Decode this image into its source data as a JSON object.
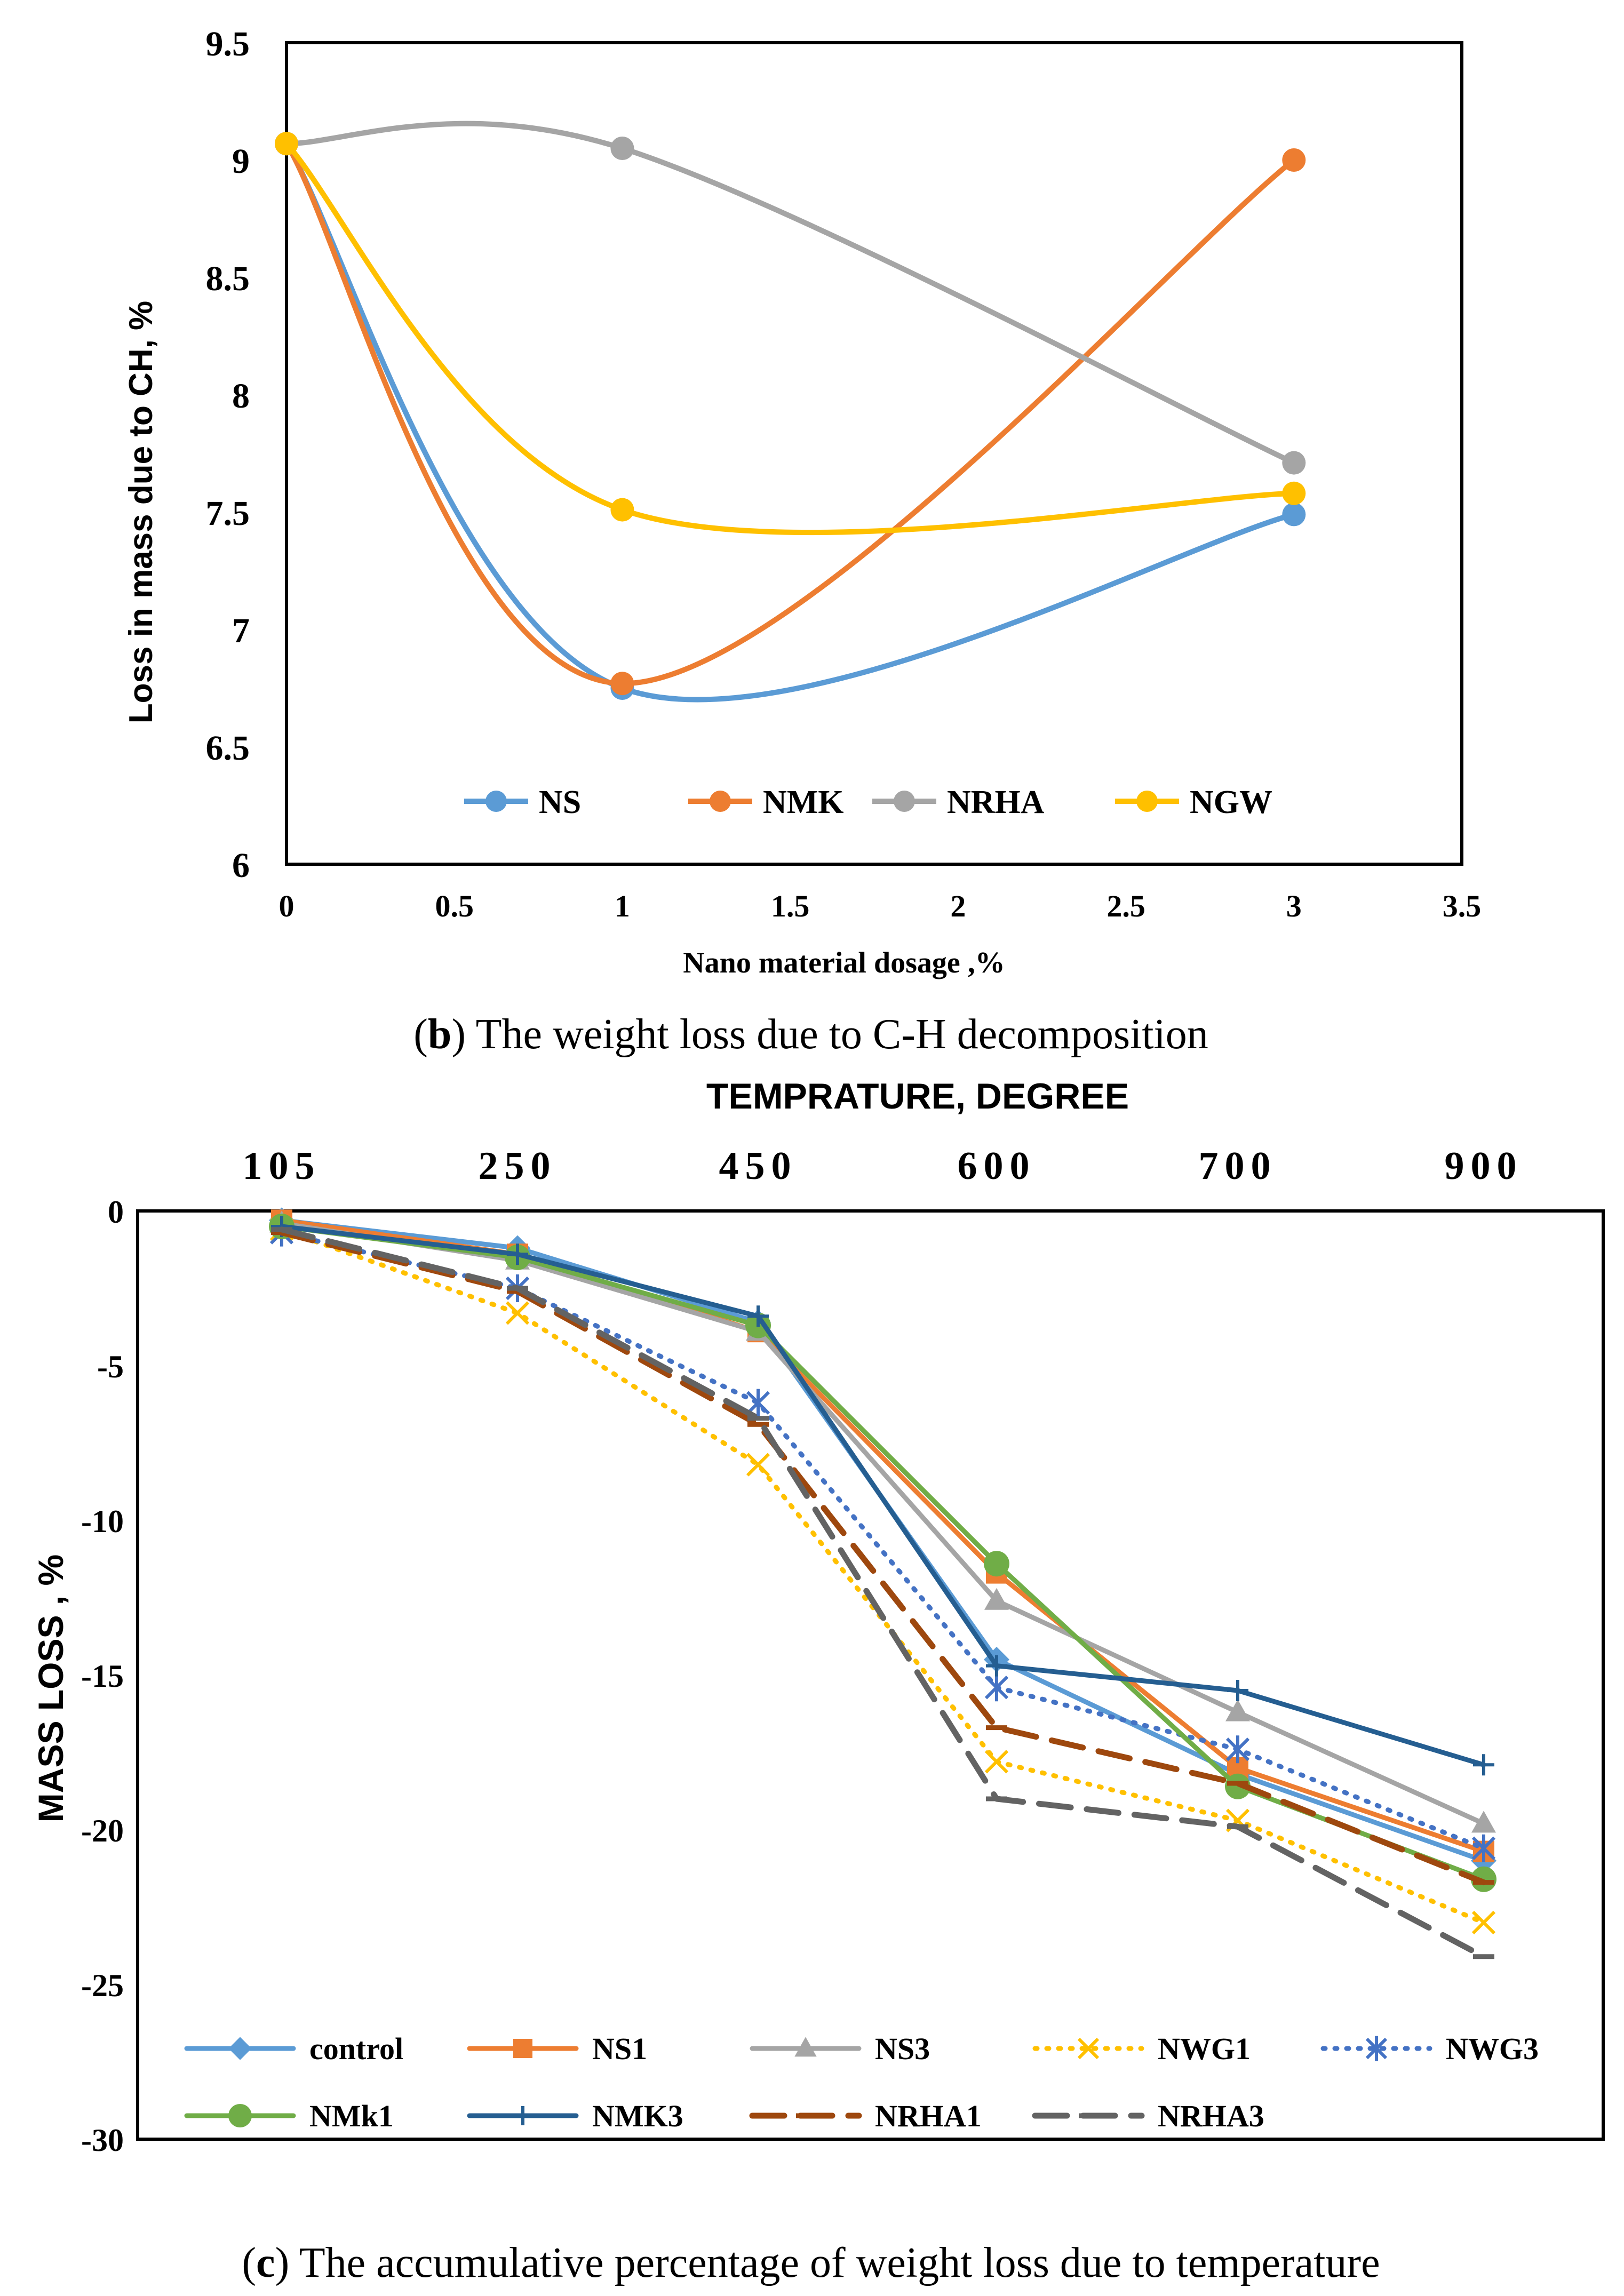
{
  "chart_data": [
    {
      "type": "line",
      "title": "",
      "xlabel": "Nano material dosage ,%",
      "ylabel": "Loss in mass due to CH, %",
      "xlim": [
        0,
        3.5
      ],
      "ylim": [
        6,
        9.5
      ],
      "x_ticks": [
        "0",
        "0.5",
        "1",
        "1.5",
        "2",
        "2.5",
        "3",
        "3.5"
      ],
      "y_ticks": [
        "6",
        "6.5",
        "7",
        "7.5",
        "8",
        "8.5",
        "9",
        "9.5"
      ],
      "x": [
        0,
        1,
        3
      ],
      "series": [
        {
          "name": "NS",
          "color": "#5B9BD5",
          "values": [
            9.07,
            6.75,
            7.49
          ]
        },
        {
          "name": "NMK",
          "color": "#ED7D31",
          "values": [
            9.07,
            6.77,
            9.0
          ]
        },
        {
          "name": "NRHA",
          "color": "#A5A5A5",
          "values": [
            9.07,
            9.05,
            7.71
          ]
        },
        {
          "name": "NGW",
          "color": "#FFC000",
          "values": [
            9.07,
            7.51,
            7.58
          ]
        }
      ],
      "caption_prefix": "(",
      "caption_letter": "b",
      "caption_text": ") The weight loss due to C-H decomposition",
      "legend": "bottom-inside"
    },
    {
      "type": "line",
      "title": "TEMPRATURE, DEGREE",
      "xlabel": "TEMPRATURE, DEGREE",
      "ylabel": "MASS LOSS , %",
      "categories": [
        "105",
        "250",
        "450",
        "600",
        "700",
        "900"
      ],
      "ylim": [
        -30,
        0
      ],
      "y_ticks": [
        "0",
        "-5",
        "-10",
        "-15",
        "-20",
        "-25",
        "-30"
      ],
      "series": [
        {
          "name": "control",
          "color": "#5B9BD5",
          "style": "solid",
          "marker": "diamond",
          "values": [
            -0.3,
            -1.2,
            -3.6,
            -14.5,
            -18.2,
            -21.0
          ]
        },
        {
          "name": "NS1",
          "color": "#ED7D31",
          "style": "solid",
          "marker": "square",
          "values": [
            -0.3,
            -1.4,
            -3.9,
            -11.7,
            -18.0,
            -20.7
          ]
        },
        {
          "name": "NS3",
          "color": "#A5A5A5",
          "style": "solid",
          "marker": "triangle",
          "values": [
            -0.4,
            -1.6,
            -3.9,
            -12.6,
            -16.2,
            -19.8
          ]
        },
        {
          "name": "NWG1",
          "color": "#FFC000",
          "style": "dot",
          "marker": "x",
          "values": [
            -0.6,
            -3.3,
            -8.2,
            -17.8,
            -19.7,
            -23.0
          ]
        },
        {
          "name": "NWG3",
          "color": "#4472C4",
          "style": "dot",
          "marker": "star",
          "values": [
            -0.7,
            -2.5,
            -6.2,
            -15.4,
            -17.4,
            -20.6
          ]
        },
        {
          "name": "NMk1",
          "color": "#70AD47",
          "style": "solid",
          "marker": "circle",
          "values": [
            -0.5,
            -1.5,
            -3.7,
            -11.4,
            -18.6,
            -21.6
          ]
        },
        {
          "name": "NMK3",
          "color": "#255E91",
          "style": "solid",
          "marker": "plus",
          "values": [
            -0.5,
            -1.4,
            -3.4,
            -14.7,
            -15.5,
            -17.9
          ]
        },
        {
          "name": "NRHA1",
          "color": "#9E480E",
          "style": "dash",
          "marker": "dash",
          "values": [
            -0.7,
            -2.6,
            -6.9,
            -16.7,
            -18.5,
            -21.7
          ]
        },
        {
          "name": "NRHA3",
          "color": "#636363",
          "style": "dash",
          "marker": "dash",
          "values": [
            -0.6,
            -2.5,
            -6.7,
            -19.0,
            -19.9,
            -24.1
          ]
        }
      ],
      "caption_prefix": "(",
      "caption_letter": "c",
      "caption_text": ") The accumulative percentage of weight loss due to temperature",
      "legend": "bottom-inside"
    }
  ]
}
